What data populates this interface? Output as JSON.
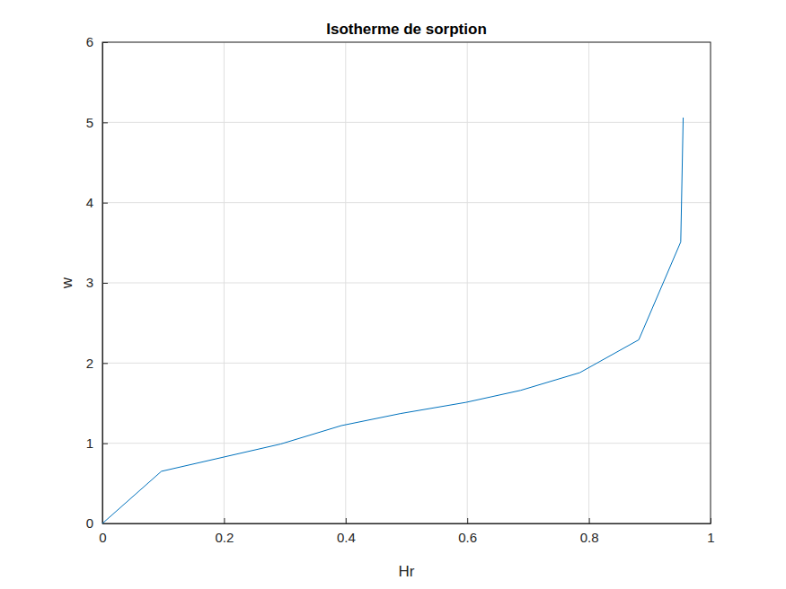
{
  "chart_data": {
    "type": "line",
    "title": "Isotherme de sorption",
    "x_label": "Hr",
    "y_label": "w",
    "x": [
      0,
      0.097,
      0.293,
      0.393,
      0.49,
      0.598,
      0.688,
      0.785,
      0.882,
      0.951,
      0.955
    ],
    "values": [
      0,
      0.65,
      0.99,
      1.22,
      1.37,
      1.51,
      1.66,
      1.88,
      2.29,
      3.51,
      5.06
    ],
    "color": "#0072bd",
    "xlim": [
      0,
      1
    ],
    "xticks": [
      0,
      0.2,
      0.4,
      0.6,
      0.8,
      1
    ],
    "ylim": [
      0,
      6
    ],
    "yticks": [
      0,
      1,
      2,
      3,
      4,
      5,
      6
    ],
    "grid": true
  }
}
